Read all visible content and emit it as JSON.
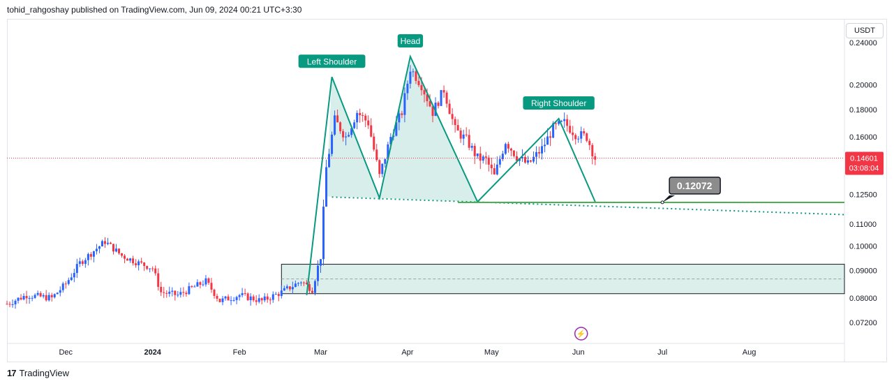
{
  "header": {
    "published_text": "tohid_rahgoshay published on TradingView.com, Jun 09, 2024 00:21 UTC+3:30"
  },
  "currency": "USDT",
  "footer": {
    "brand": "TradingView",
    "logo_glyph": "17"
  },
  "colors": {
    "up": "#2962ff",
    "down": "#f23645",
    "pattern": "#089981",
    "pattern_fill": "#d1ebe6",
    "neckline": "#4caf50",
    "price_tag": "#f23645",
    "label_bg": "#089981",
    "box_fill": "#dcefea"
  },
  "chart_data": {
    "type": "candlestick",
    "symbol_quote": "USDT",
    "y_scale": "log",
    "ylim": [
      0.066,
      0.265
    ],
    "y_ticks": [
      "0.24000",
      "0.20000",
      "0.18000",
      "0.16000",
      "0.12500",
      "0.11000",
      "0.10000",
      "0.09000",
      "0.08000",
      "0.07200"
    ],
    "x_ticks": [
      {
        "label": "Dec",
        "day": 0
      },
      {
        "label": "2024",
        "day": 31
      },
      {
        "label": "Feb",
        "day": 62
      },
      {
        "label": "Mar",
        "day": 91
      },
      {
        "label": "Apr",
        "day": 122
      },
      {
        "label": "May",
        "day": 152
      },
      {
        "label": "Jun",
        "day": 183
      },
      {
        "label": "Jul",
        "day": 213
      },
      {
        "label": "Aug",
        "day": 244
      }
    ],
    "x_range_days": [
      -21,
      278
    ],
    "last_price": {
      "value": 0.14601,
      "label": "0.14601",
      "countdown": "03:08:04"
    },
    "annotations": {
      "left_shoulder": {
        "text": "Left Shoulder",
        "day": 95,
        "price": 0.207
      },
      "head": {
        "text": "Head",
        "day": 123,
        "price": 0.226
      },
      "right_shoulder": {
        "text": "Right Shoulder",
        "day": 176,
        "price": 0.173
      },
      "target": {
        "text": "0.12072",
        "value": 0.12072
      },
      "neckline_level": 0.1207
    },
    "pattern_points": [
      {
        "day": 86,
        "price": 0.081
      },
      {
        "day": 95,
        "price": 0.207
      },
      {
        "day": 112,
        "price": 0.123
      },
      {
        "day": 123,
        "price": 0.226
      },
      {
        "day": 147,
        "price": 0.121
      },
      {
        "day": 176,
        "price": 0.173
      },
      {
        "day": 189,
        "price": 0.121
      }
    ],
    "dotted_neckline": [
      {
        "day": 95,
        "price": 0.1235
      },
      {
        "day": 278,
        "price": 0.1145
      }
    ],
    "accumulation_box": {
      "day_start": 77,
      "day_end": 278,
      "price_low": 0.0815,
      "price_high": 0.0925
    },
    "candles_summary": [
      {
        "day": -21,
        "price": 0.078
      },
      {
        "day": -14,
        "price": 0.081
      },
      {
        "day": -5,
        "price": 0.08
      },
      {
        "day": 0,
        "price": 0.085
      },
      {
        "day": 5,
        "price": 0.093
      },
      {
        "day": 10,
        "price": 0.098
      },
      {
        "day": 14,
        "price": 0.102
      },
      {
        "day": 20,
        "price": 0.096
      },
      {
        "day": 26,
        "price": 0.093
      },
      {
        "day": 31,
        "price": 0.091
      },
      {
        "day": 34,
        "price": 0.082
      },
      {
        "day": 40,
        "price": 0.081
      },
      {
        "day": 50,
        "price": 0.086
      },
      {
        "day": 55,
        "price": 0.079
      },
      {
        "day": 62,
        "price": 0.081
      },
      {
        "day": 70,
        "price": 0.079
      },
      {
        "day": 77,
        "price": 0.082
      },
      {
        "day": 84,
        "price": 0.086
      },
      {
        "day": 88,
        "price": 0.083
      },
      {
        "day": 91,
        "price": 0.096
      },
      {
        "day": 93,
        "price": 0.14
      },
      {
        "day": 96,
        "price": 0.172
      },
      {
        "day": 100,
        "price": 0.16
      },
      {
        "day": 104,
        "price": 0.178
      },
      {
        "day": 108,
        "price": 0.17
      },
      {
        "day": 112,
        "price": 0.135
      },
      {
        "day": 116,
        "price": 0.16
      },
      {
        "day": 120,
        "price": 0.178
      },
      {
        "day": 123,
        "price": 0.215
      },
      {
        "day": 127,
        "price": 0.2
      },
      {
        "day": 131,
        "price": 0.178
      },
      {
        "day": 135,
        "price": 0.196
      },
      {
        "day": 139,
        "price": 0.165
      },
      {
        "day": 143,
        "price": 0.158
      },
      {
        "day": 147,
        "price": 0.146
      },
      {
        "day": 150,
        "price": 0.145
      },
      {
        "day": 153,
        "price": 0.135
      },
      {
        "day": 157,
        "price": 0.157
      },
      {
        "day": 161,
        "price": 0.147
      },
      {
        "day": 165,
        "price": 0.142
      },
      {
        "day": 170,
        "price": 0.152
      },
      {
        "day": 174,
        "price": 0.166
      },
      {
        "day": 178,
        "price": 0.17
      },
      {
        "day": 182,
        "price": 0.162
      },
      {
        "day": 186,
        "price": 0.16
      },
      {
        "day": 189,
        "price": 0.146
      }
    ]
  }
}
